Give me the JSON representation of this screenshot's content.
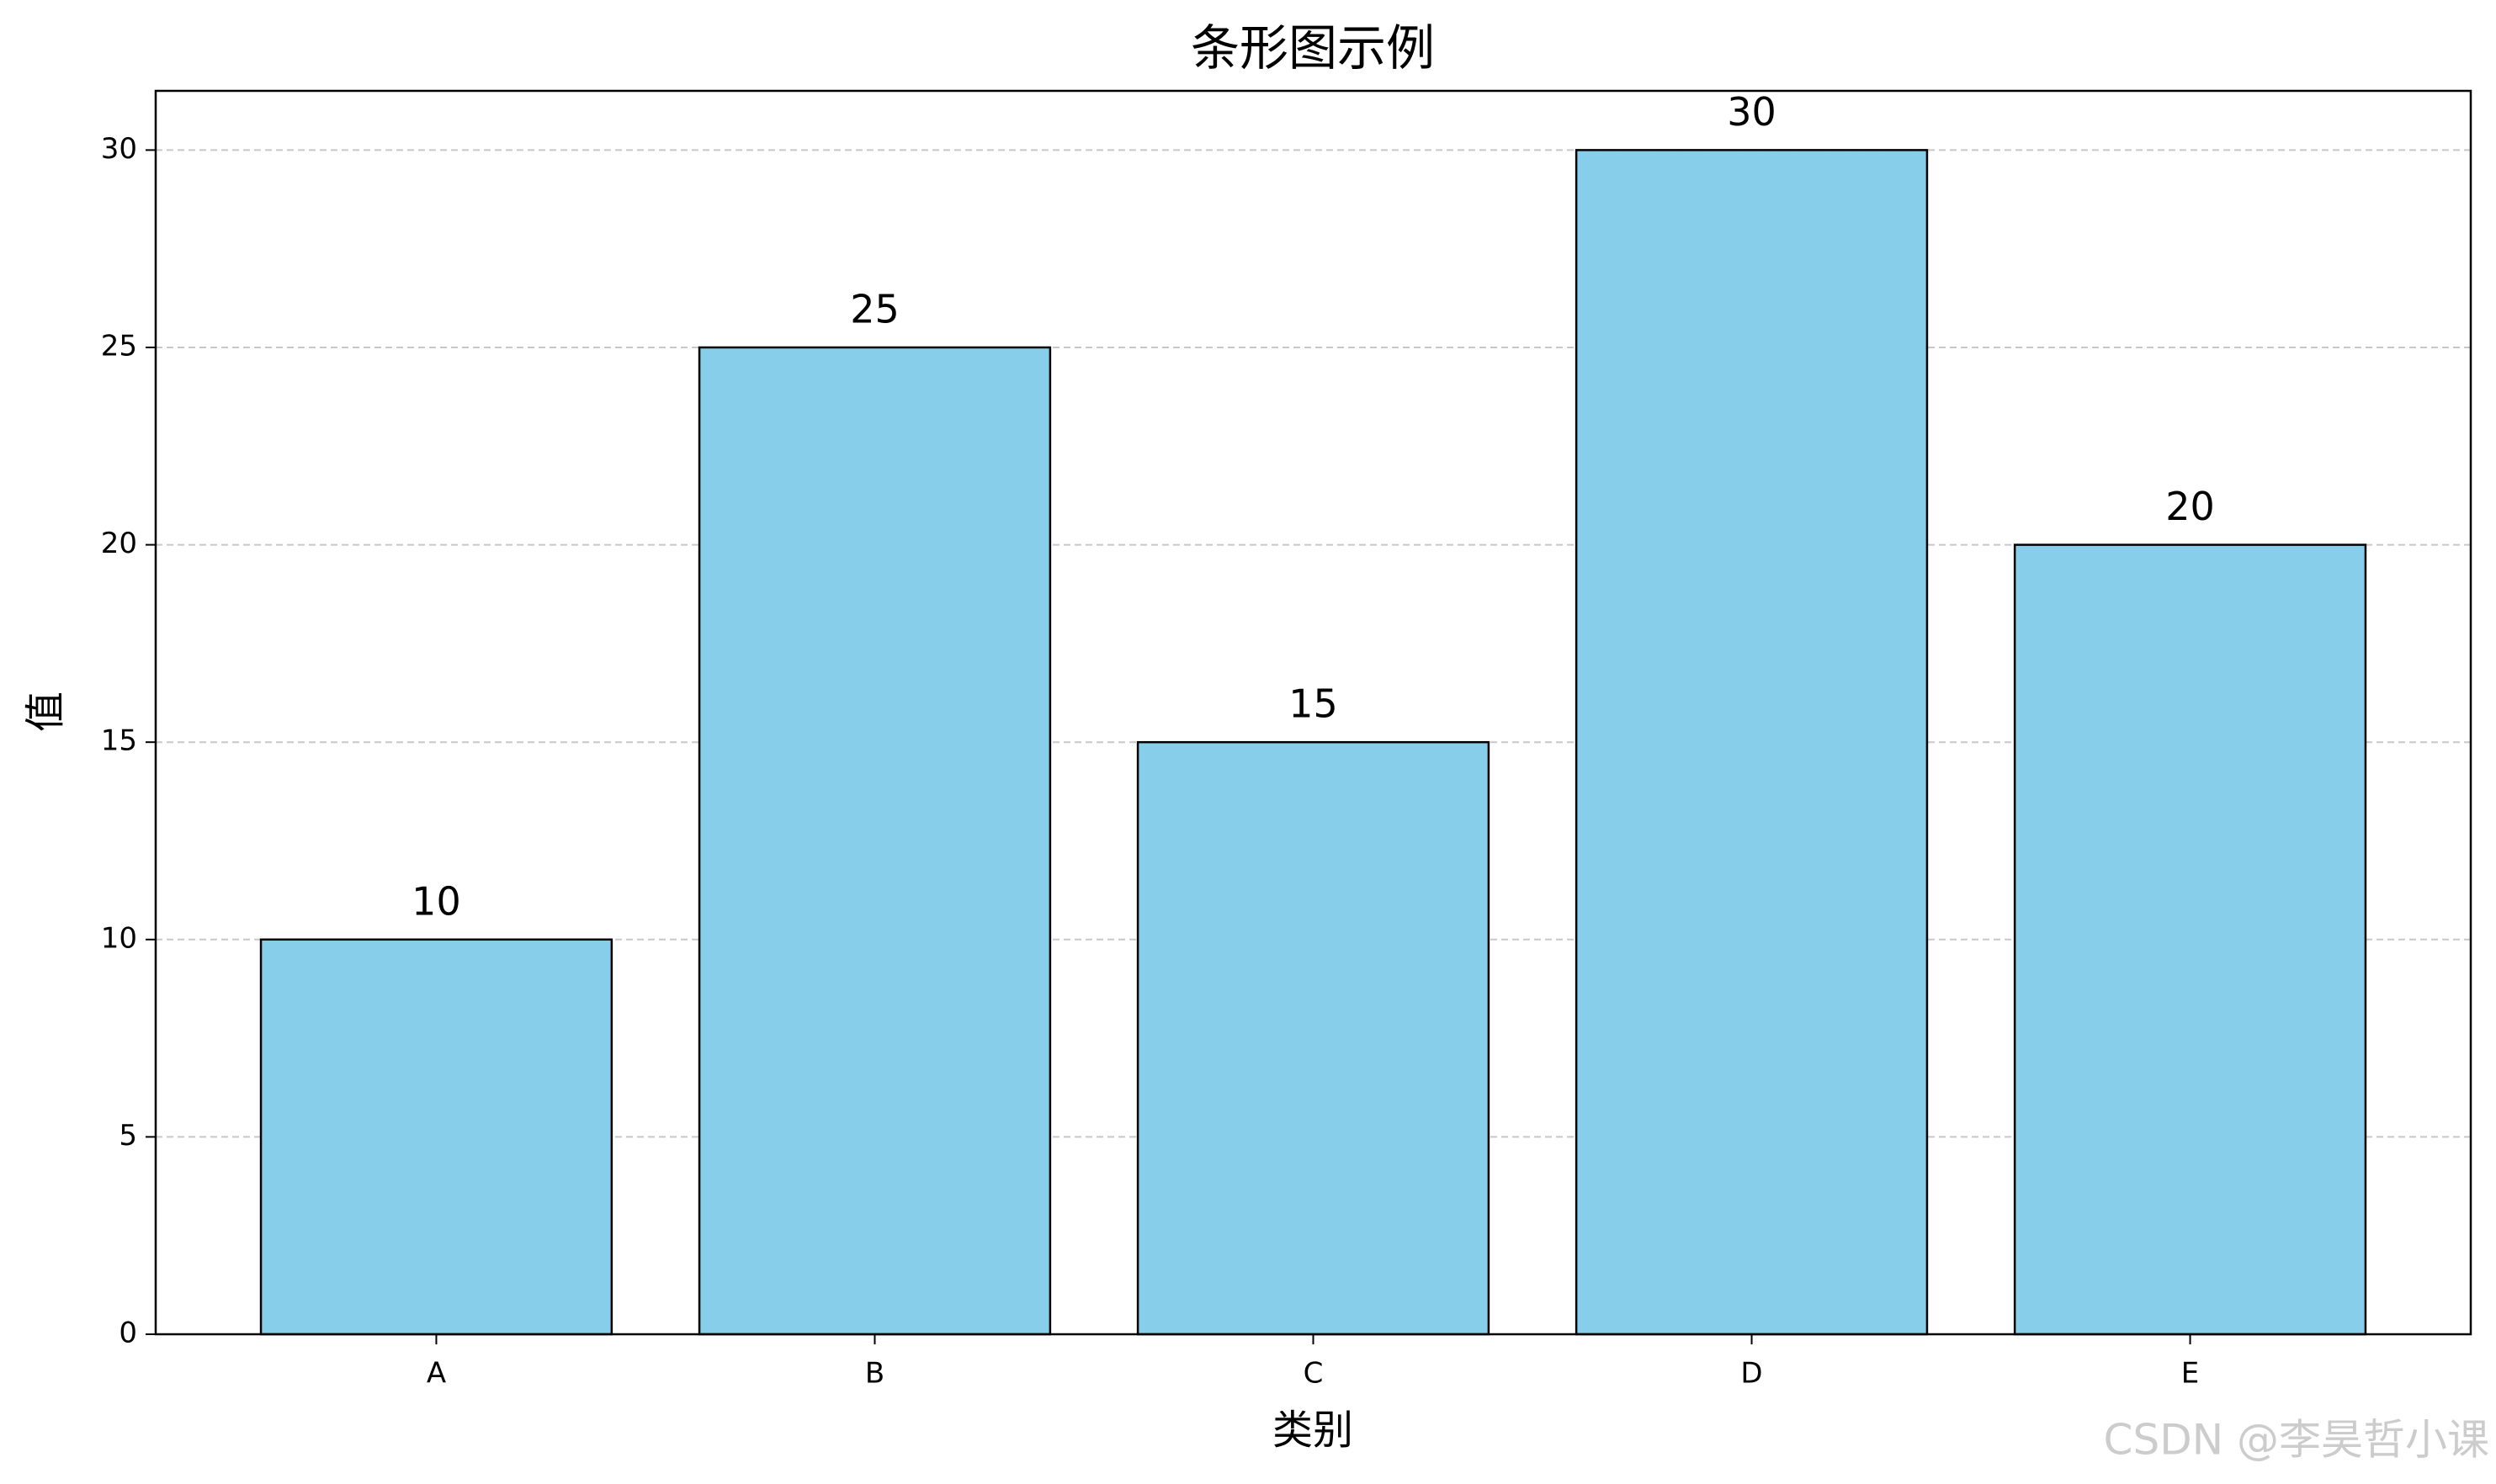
{
  "chart_data": {
    "type": "bar",
    "title": "条形图示例",
    "x_label": "类别",
    "y_label": "值",
    "categories": [
      "A",
      "B",
      "C",
      "D",
      "E"
    ],
    "values": [
      10,
      25,
      15,
      30,
      20
    ],
    "color": "#87ceeb",
    "edge_color": "#000000",
    "ylim": [
      0,
      31.5
    ],
    "yticks": [
      0,
      5,
      10,
      15,
      20,
      25,
      30
    ],
    "grid": true,
    "watermark": "CSDN @李昊哲小课"
  }
}
